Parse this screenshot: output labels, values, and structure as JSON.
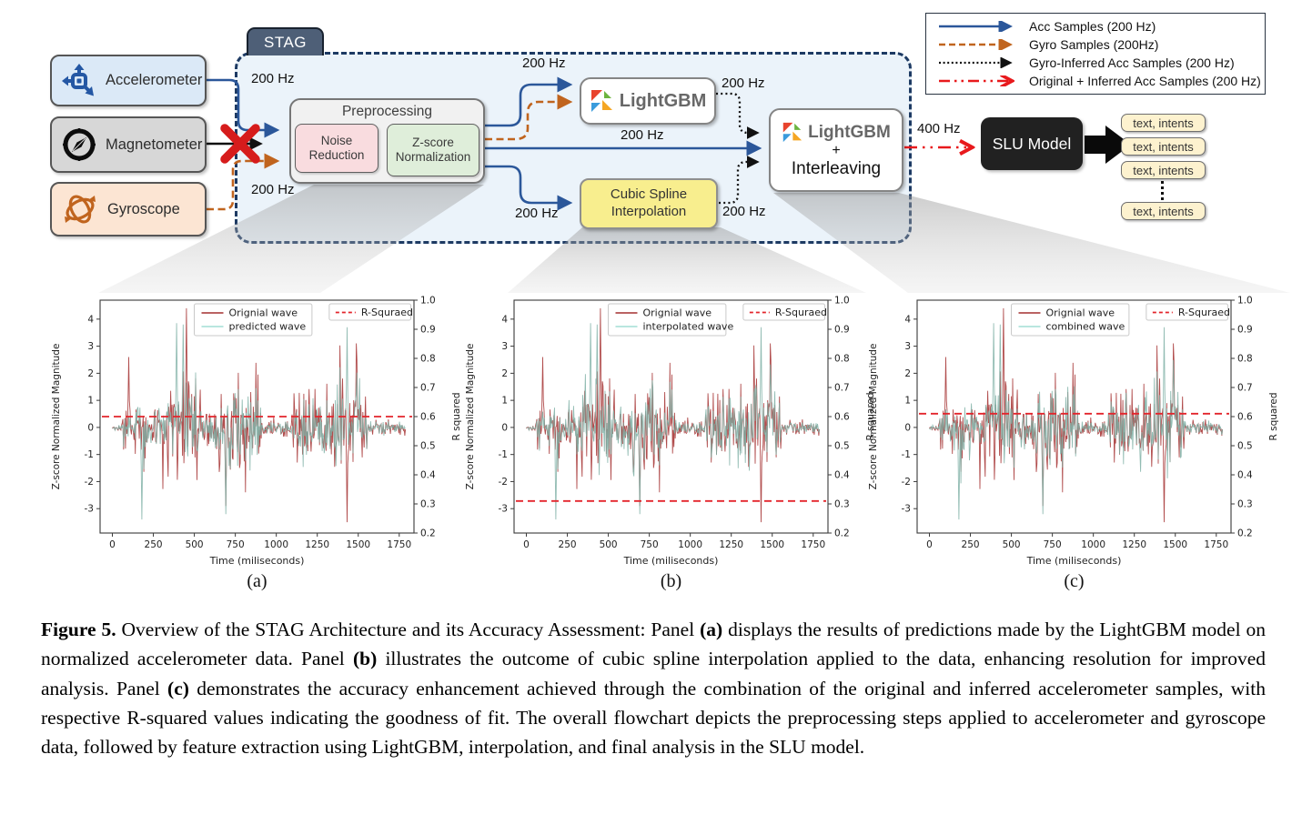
{
  "figure": {
    "stag_label": "STAG",
    "hz200": "200 Hz",
    "hz400": "400 Hz",
    "sensors": [
      {
        "label": "Accelerometer"
      },
      {
        "label": "Magnetometer"
      },
      {
        "label": "Gyroscope"
      }
    ],
    "boxes": {
      "preprocessing": {
        "title": "Preprocessing",
        "noise": "Noise Reduction",
        "zscore": "Z-score Normalization"
      },
      "lightgbm": "LightGBM",
      "cubic": "Cubic Spline Interpolation",
      "lgbm_interleave": {
        "row1": "LightGBM",
        "row2": "+",
        "row3": "Interleaving"
      },
      "slu": "SLU Model"
    },
    "outputs": [
      "text, intents",
      "text, intents",
      "text, intents",
      "text, intents"
    ],
    "legend": {
      "items": [
        {
          "label": "Acc Samples (200 Hz)",
          "style": "solid-blue",
          "color": "#2b579a"
        },
        {
          "label": "Gyro Samples (200Hz)",
          "style": "dashed-orange",
          "color": "#c0641e"
        },
        {
          "label": "Gyro-Inferred Acc Samples (200 Hz)",
          "style": "dotted-black",
          "color": "#111111"
        },
        {
          "label": "Original + Inferred Acc Samples (200 Hz)",
          "style": "dashdot-red",
          "color": "#e8191c"
        }
      ]
    },
    "colors": {
      "acc_arrow": "#2b579a",
      "gyro_arrow": "#c0641e",
      "inferred_arrow": "#111111",
      "combined_arrow": "#e8191c",
      "cross": "#d61c1c"
    }
  },
  "chart_data": [
    {
      "type": "line",
      "panel_label": "(a)",
      "xlabel": "Time (miliseconds)",
      "ylabel_left": "Z-score Normalized Magnitude",
      "ylabel_right": "R squared",
      "xticks": [
        0,
        250,
        500,
        750,
        1000,
        1250,
        1500,
        1750
      ],
      "yticks_left": [
        4,
        3,
        2,
        1,
        0,
        -1,
        -2,
        -3
      ],
      "yticks_right": [
        1.0,
        0.9,
        0.8,
        0.7,
        0.6,
        0.5,
        0.4,
        0.3,
        0.2
      ],
      "xlim": [
        -75,
        1840
      ],
      "ylim_left": [
        -3.9,
        4.7
      ],
      "ylim_right": [
        0.2,
        1.0
      ],
      "r_squared": 0.6,
      "r_line_color": "#e3242b",
      "legend": {
        "series": [
          {
            "name": "Orignial wave"
          },
          {
            "name": "predicted wave"
          }
        ],
        "r_label": "R-Squraed"
      },
      "series_colors": {
        "original": "#b14d4d",
        "second": "#7fb0a6",
        "second_legend": "#b9e6df"
      },
      "waveform": {
        "seed_original": 101,
        "seed_second": 202,
        "step_ms": 4,
        "range_ms": [
          0,
          1790
        ],
        "base_amp": 0.12,
        "bursts": [
          [
            60,
            150,
            0.75
          ],
          [
            150,
            335,
            1.5
          ],
          [
            335,
            520,
            2.4
          ],
          [
            520,
            650,
            1.2
          ],
          [
            650,
            905,
            1.8
          ],
          [
            905,
            1085,
            0.28
          ],
          [
            1085,
            1355,
            1.7
          ],
          [
            1355,
            1555,
            2.0
          ],
          [
            1555,
            1790,
            0.3
          ]
        ],
        "spikes_original": [
          [
            100,
            2.6
          ],
          [
            450,
            4.4
          ],
          [
            690,
            -2.9
          ],
          [
            1430,
            -3.5
          ]
        ],
        "spikes_second": [
          [
            180,
            -3.4
          ],
          [
            390,
            3.85
          ],
          [
            430,
            3.8
          ],
          [
            690,
            -3.2
          ],
          [
            1430,
            3.7
          ]
        ]
      }
    },
    {
      "type": "line",
      "panel_label": "(b)",
      "xlabel": "Time (miliseconds)",
      "ylabel_left": "Z-score Normalized Magnitude",
      "ylabel_right": "R squared",
      "xticks": [
        0,
        250,
        500,
        750,
        1000,
        1250,
        1500,
        1750
      ],
      "yticks_left": [
        4,
        3,
        2,
        1,
        0,
        -1,
        -2,
        -3
      ],
      "yticks_right": [
        1.0,
        0.9,
        0.8,
        0.7,
        0.6,
        0.5,
        0.4,
        0.3,
        0.2
      ],
      "xlim": [
        -75,
        1840
      ],
      "ylim_left": [
        -3.9,
        4.7
      ],
      "ylim_right": [
        0.2,
        1.0
      ],
      "r_squared": 0.31,
      "r_line_color": "#e3242b",
      "legend": {
        "series": [
          {
            "name": "Orignial wave"
          },
          {
            "name": "interpolated wave"
          }
        ],
        "r_label": "R-Squraed"
      },
      "series_colors": {
        "original": "#b14d4d",
        "second": "#7fb0a6",
        "second_legend": "#b9e6df"
      },
      "waveform": {
        "seed_original": 101,
        "seed_second": 303,
        "step_ms": 4,
        "range_ms": [
          0,
          1790
        ],
        "base_amp": 0.12,
        "bursts": [
          [
            60,
            150,
            0.75
          ],
          [
            150,
            335,
            1.5
          ],
          [
            335,
            520,
            2.4
          ],
          [
            520,
            650,
            1.2
          ],
          [
            650,
            905,
            1.8
          ],
          [
            905,
            1085,
            0.28
          ],
          [
            1085,
            1355,
            1.7
          ],
          [
            1355,
            1555,
            2.0
          ],
          [
            1555,
            1790,
            0.3
          ]
        ],
        "spikes_original": [
          [
            100,
            2.6
          ],
          [
            450,
            4.4
          ],
          [
            690,
            -2.9
          ],
          [
            1430,
            -3.5
          ]
        ],
        "spikes_second": [
          [
            180,
            -3.4
          ],
          [
            390,
            3.85
          ],
          [
            430,
            3.8
          ],
          [
            690,
            -3.2
          ],
          [
            1430,
            3.7
          ]
        ]
      }
    },
    {
      "type": "line",
      "panel_label": "(c)",
      "xlabel": "Time (miliseconds)",
      "ylabel_left": "Z-score Normalized Magnitude",
      "ylabel_right": "R squared",
      "xticks": [
        0,
        250,
        500,
        750,
        1000,
        1250,
        1500,
        1750
      ],
      "yticks_left": [
        4,
        3,
        2,
        1,
        0,
        -1,
        -2,
        -3
      ],
      "yticks_right": [
        1.0,
        0.9,
        0.8,
        0.7,
        0.6,
        0.5,
        0.4,
        0.3,
        0.2
      ],
      "xlim": [
        -75,
        1840
      ],
      "ylim_left": [
        -3.9,
        4.7
      ],
      "ylim_right": [
        0.2,
        1.0
      ],
      "r_squared": 0.61,
      "r_line_color": "#e3242b",
      "legend": {
        "series": [
          {
            "name": "Orignial wave"
          },
          {
            "name": "combined wave"
          }
        ],
        "r_label": "R-Squraed"
      },
      "series_colors": {
        "original": "#b14d4d",
        "second": "#7fb0a6",
        "second_legend": "#b9e6df"
      },
      "waveform": {
        "seed_original": 101,
        "seed_second": 404,
        "step_ms": 4,
        "range_ms": [
          0,
          1790
        ],
        "base_amp": 0.12,
        "bursts": [
          [
            60,
            150,
            0.75
          ],
          [
            150,
            335,
            1.5
          ],
          [
            335,
            520,
            2.4
          ],
          [
            520,
            650,
            1.2
          ],
          [
            650,
            905,
            1.8
          ],
          [
            905,
            1085,
            0.28
          ],
          [
            1085,
            1355,
            1.7
          ],
          [
            1355,
            1555,
            2.0
          ],
          [
            1555,
            1790,
            0.3
          ]
        ],
        "spikes_original": [
          [
            100,
            2.6
          ],
          [
            450,
            4.4
          ],
          [
            690,
            -2.9
          ],
          [
            1430,
            -3.5
          ]
        ],
        "spikes_second": [
          [
            180,
            -3.4
          ],
          [
            390,
            3.85
          ],
          [
            430,
            3.8
          ],
          [
            690,
            -3.2
          ],
          [
            1430,
            3.7
          ]
        ]
      }
    }
  ],
  "caption": {
    "segments": [
      {
        "t": "Figure 5.",
        "b": true
      },
      {
        "t": " Overview of the STAG Architecture and its Accuracy Assessment: Panel ",
        "b": false
      },
      {
        "t": "(a)",
        "b": true
      },
      {
        "t": " displays the results of predictions made by the LightGBM model on normalized accelerometer data. Panel ",
        "b": false
      },
      {
        "t": "(b)",
        "b": true
      },
      {
        "t": " illustrates the outcome of cubic spline interpolation applied to the data, enhancing resolution for improved analysis. Panel ",
        "b": false
      },
      {
        "t": "(c)",
        "b": true
      },
      {
        "t": " demonstrates the accuracy enhancement achieved through the combination of the original and inferred accelerometer samples, with respective R-squared values indicating the goodness of fit. The overall flowchart depicts the preprocessing steps applied to accelerometer and gyroscope data, followed by feature extraction using LightGBM, interpolation, and final analysis in the SLU model.",
        "b": false
      }
    ]
  }
}
